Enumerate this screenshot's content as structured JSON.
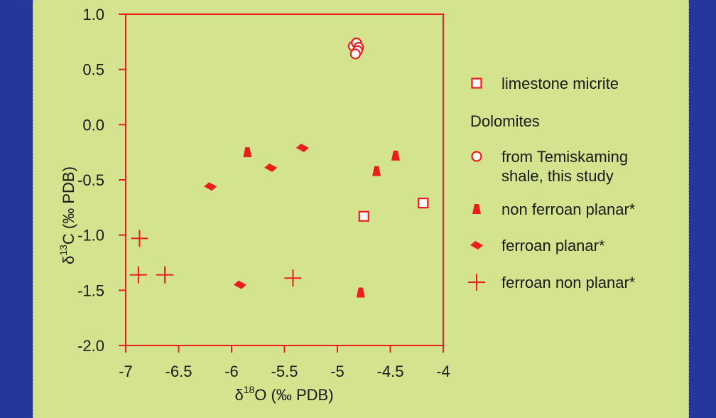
{
  "colors": {
    "background": "#27369a",
    "panel": "#d4e38d",
    "marks": "#ee1c1c",
    "text": "#1a1a1a"
  },
  "chart_data": {
    "type": "scatter",
    "xlabel": {
      "prefix": "δ",
      "sup": "18",
      "main": "O (‰ PDB)"
    },
    "ylabel": {
      "prefix": "δ",
      "sup": "13",
      "main": "C (‰ PDB)"
    },
    "xlim": [
      -7,
      -4
    ],
    "ylim": [
      -2.0,
      1.0
    ],
    "x_ticks": [
      -7,
      -6.5,
      -6,
      -5.5,
      -5,
      -4.5,
      -4
    ],
    "x_tick_labels": [
      "-7",
      "-6.5",
      "-6",
      "-5.5",
      "-5",
      "-4.5",
      "-4"
    ],
    "y_ticks": [
      1.0,
      0.5,
      0.0,
      -0.5,
      -1.0,
      -1.5,
      -2.0
    ],
    "y_tick_labels": [
      "1.0",
      "0.5",
      "0.0",
      "-0.5",
      "-1.0",
      "-1.5",
      "-2.0"
    ],
    "grid": false,
    "legend_position": "right",
    "legend_heading": "Dolomites",
    "series": [
      {
        "name": "limestone micrite",
        "marker": "square-open",
        "points": [
          [
            -4.75,
            -0.83
          ],
          [
            -4.19,
            -0.71
          ]
        ]
      },
      {
        "name": "from Temiskaming shale, this study",
        "legend_lines": [
          "from Temiskaming",
          "shale, this study"
        ],
        "marker": "circle-open",
        "points": [
          [
            -4.85,
            0.71
          ],
          [
            -4.82,
            0.74
          ],
          [
            -4.8,
            0.7
          ],
          [
            -4.81,
            0.67
          ],
          [
            -4.83,
            0.64
          ]
        ]
      },
      {
        "name": "non ferroan planar*",
        "marker": "triangle",
        "points": [
          [
            -5.85,
            -0.25
          ],
          [
            -4.63,
            -0.42
          ],
          [
            -4.45,
            -0.28
          ],
          [
            -4.78,
            -1.52
          ]
        ]
      },
      {
        "name": "ferroan planar*",
        "marker": "diamond",
        "points": [
          [
            -6.2,
            -0.56
          ],
          [
            -5.63,
            -0.39
          ],
          [
            -5.33,
            -0.21
          ],
          [
            -5.92,
            -1.45
          ]
        ]
      },
      {
        "name": "ferroan non planar*",
        "marker": "cross",
        "points": [
          [
            -6.87,
            -1.03
          ],
          [
            -6.88,
            -1.36
          ],
          [
            -6.63,
            -1.36
          ],
          [
            -5.42,
            -1.39
          ]
        ]
      }
    ]
  }
}
